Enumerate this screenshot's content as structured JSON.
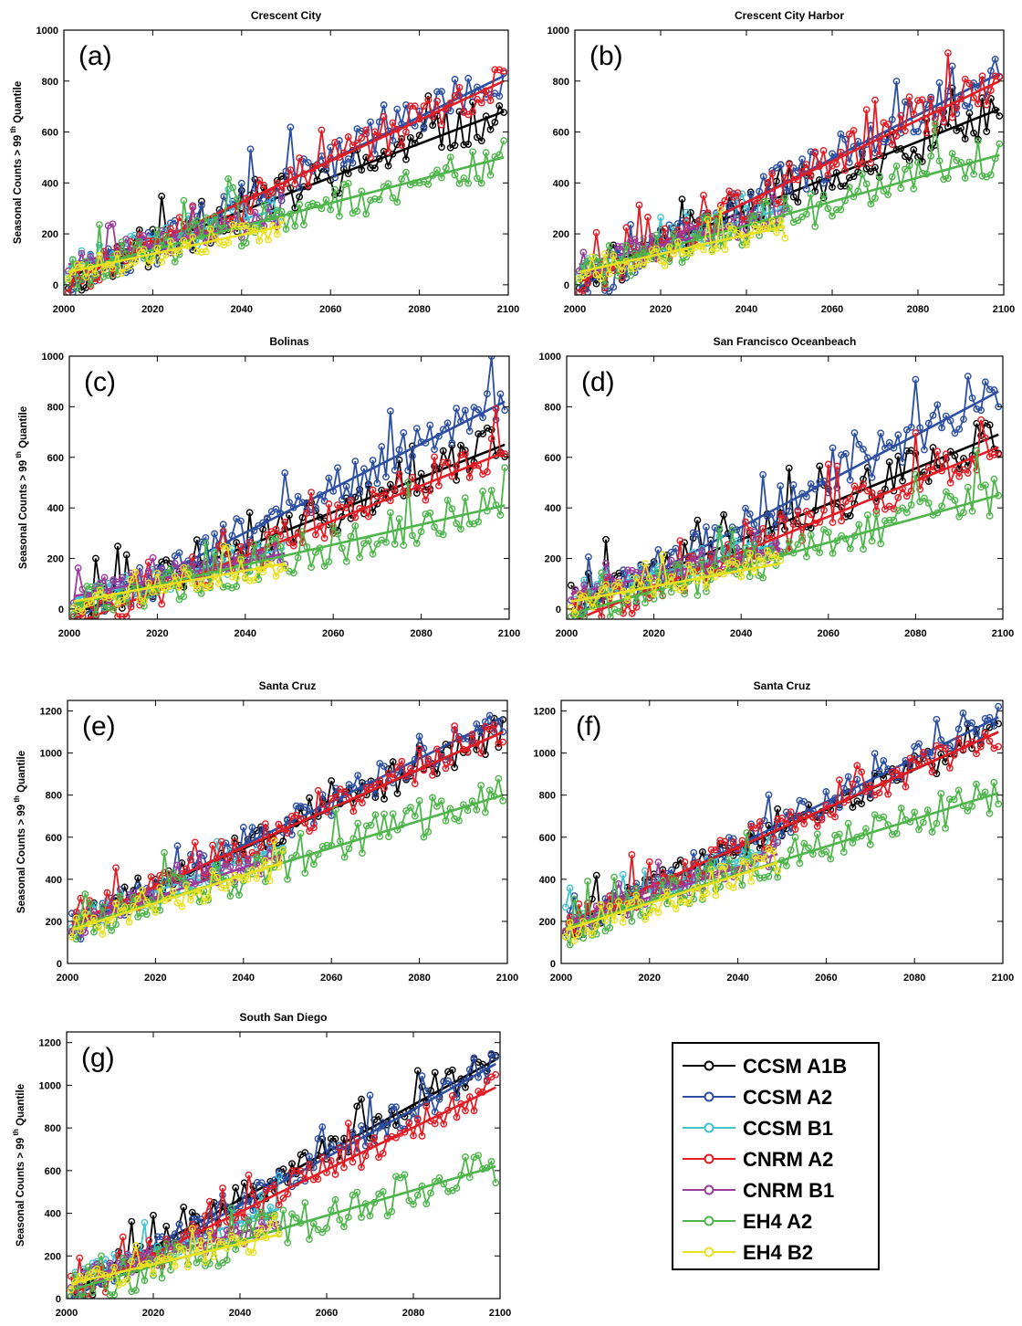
{
  "chart_data": [
    {
      "type": "line",
      "panel": "(a)",
      "title": "Crescent City",
      "ylabel": "Seasonal  Counts > 99 th Quantile",
      "xlim": [
        2000,
        2100
      ],
      "ylim": [
        -40,
        1000
      ],
      "xticks": [
        2000,
        2020,
        2040,
        2060,
        2080,
        2100
      ],
      "yticks": [
        0,
        200,
        400,
        600,
        800,
        1000
      ],
      "series": [
        {
          "name": "CCSM  A1B",
          "x_range": [
            2001,
            2099
          ],
          "trend": [
            30,
            680
          ],
          "noise": 85,
          "seed": 11
        },
        {
          "name": "CCSM  A2",
          "x_range": [
            2001,
            2099
          ],
          "trend": [
            -10,
            820
          ],
          "noise": 80,
          "seed": 12
        },
        {
          "name": "CCSM  B1",
          "x_range": [
            2001,
            2049
          ],
          "trend": [
            70,
            300
          ],
          "noise": 55,
          "seed": 13
        },
        {
          "name": "CNRM  A2",
          "x_range": [
            2001,
            2099
          ],
          "trend": [
            10,
            800
          ],
          "noise": 80,
          "seed": 14
        },
        {
          "name": "CNRM  B1",
          "x_range": [
            2001,
            2049
          ],
          "trend": [
            80,
            270
          ],
          "noise": 50,
          "seed": 15
        },
        {
          "name": "EH4  A2",
          "x_range": [
            2001,
            2099
          ],
          "trend": [
            50,
            500
          ],
          "noise": 80,
          "seed": 16
        },
        {
          "name": "EH4  B2",
          "x_range": [
            2001,
            2049
          ],
          "trend": [
            50,
            230
          ],
          "noise": 50,
          "seed": 17
        }
      ]
    },
    {
      "type": "line",
      "panel": "(b)",
      "title": "Crescent  City  Harbor",
      "ylabel": "",
      "xlim": [
        2000,
        2100
      ],
      "ylim": [
        -40,
        1000
      ],
      "xticks": [
        2000,
        2020,
        2040,
        2060,
        2080,
        2100
      ],
      "yticks": [
        0,
        200,
        400,
        600,
        800,
        1000
      ],
      "series": [
        {
          "name": "CCSM  A1B",
          "x_range": [
            2001,
            2099
          ],
          "trend": [
            30,
            690
          ],
          "noise": 85,
          "seed": 21
        },
        {
          "name": "CCSM  A2",
          "x_range": [
            2001,
            2099
          ],
          "trend": [
            -10,
            830
          ],
          "noise": 80,
          "seed": 22
        },
        {
          "name": "CCSM  B1",
          "x_range": [
            2001,
            2049
          ],
          "trend": [
            70,
            300
          ],
          "noise": 55,
          "seed": 23
        },
        {
          "name": "CNRM  A2",
          "x_range": [
            2001,
            2099
          ],
          "trend": [
            10,
            800
          ],
          "noise": 80,
          "seed": 24
        },
        {
          "name": "CNRM  B1",
          "x_range": [
            2001,
            2049
          ],
          "trend": [
            80,
            270
          ],
          "noise": 50,
          "seed": 25
        },
        {
          "name": "EH4  A2",
          "x_range": [
            2001,
            2099
          ],
          "trend": [
            50,
            510
          ],
          "noise": 80,
          "seed": 26
        },
        {
          "name": "EH4  B2",
          "x_range": [
            2001,
            2049
          ],
          "trend": [
            50,
            230
          ],
          "noise": 50,
          "seed": 27
        }
      ]
    },
    {
      "type": "line",
      "panel": "(c)",
      "title": "Bolinas",
      "ylabel": "Seasonal  Counts > 99 th Quantile",
      "xlim": [
        2000,
        2100
      ],
      "ylim": [
        -40,
        1000
      ],
      "xticks": [
        2000,
        2020,
        2040,
        2060,
        2080,
        2100
      ],
      "yticks": [
        0,
        200,
        400,
        600,
        800,
        1000
      ],
      "series": [
        {
          "name": "CCSM  A1B",
          "x_range": [
            2001,
            2099
          ],
          "trend": [
            -20,
            650
          ],
          "noise": 80,
          "seed": 31
        },
        {
          "name": "CCSM  A2",
          "x_range": [
            2001,
            2099
          ],
          "trend": [
            -40,
            820
          ],
          "noise": 80,
          "seed": 32
        },
        {
          "name": "CCSM  B1",
          "x_range": [
            2001,
            2049
          ],
          "trend": [
            40,
            240
          ],
          "noise": 55,
          "seed": 33
        },
        {
          "name": "CNRM  A2",
          "x_range": [
            2001,
            2099
          ],
          "trend": [
            -60,
            620
          ],
          "noise": 80,
          "seed": 34
        },
        {
          "name": "CNRM  B1",
          "x_range": [
            2001,
            2049
          ],
          "trend": [
            50,
            220
          ],
          "noise": 50,
          "seed": 35
        },
        {
          "name": "EH4  A2",
          "x_range": [
            2001,
            2099
          ],
          "trend": [
            20,
            410
          ],
          "noise": 80,
          "seed": 36
        },
        {
          "name": "EH4  B2",
          "x_range": [
            2001,
            2049
          ],
          "trend": [
            30,
            180
          ],
          "noise": 50,
          "seed": 37
        }
      ]
    },
    {
      "type": "line",
      "panel": "(d)",
      "title": "San Francisco  Oceanbeach",
      "ylabel": "",
      "xlim": [
        2000,
        2100
      ],
      "ylim": [
        -40,
        1000
      ],
      "xticks": [
        2000,
        2020,
        2040,
        2060,
        2080,
        2100
      ],
      "yticks": [
        0,
        200,
        400,
        600,
        800,
        1000
      ],
      "series": [
        {
          "name": "CCSM  A1B",
          "x_range": [
            2001,
            2099
          ],
          "trend": [
            0,
            690
          ],
          "noise": 85,
          "seed": 41
        },
        {
          "name": "CCSM  A2",
          "x_range": [
            2001,
            2099
          ],
          "trend": [
            -30,
            860
          ],
          "noise": 85,
          "seed": 42
        },
        {
          "name": "CCSM  B1",
          "x_range": [
            2001,
            2049
          ],
          "trend": [
            60,
            260
          ],
          "noise": 55,
          "seed": 43
        },
        {
          "name": "CNRM  A2",
          "x_range": [
            2001,
            2099
          ],
          "trend": [
            -50,
            640
          ],
          "noise": 80,
          "seed": 44
        },
        {
          "name": "CNRM  B1",
          "x_range": [
            2001,
            2049
          ],
          "trend": [
            60,
            240
          ],
          "noise": 50,
          "seed": 45
        },
        {
          "name": "EH4  A2",
          "x_range": [
            2001,
            2099
          ],
          "trend": [
            -20,
            450
          ],
          "noise": 80,
          "seed": 46
        },
        {
          "name": "EH4  B2",
          "x_range": [
            2001,
            2049
          ],
          "trend": [
            30,
            180
          ],
          "noise": 50,
          "seed": 47
        }
      ]
    },
    {
      "type": "line",
      "panel": "(e)",
      "title": "Santa  Cruz",
      "ylabel": "Seasonal  Counts > 99 th Quantile",
      "xlim": [
        2000,
        2100
      ],
      "ylim": [
        0,
        1250
      ],
      "xticks": [
        2000,
        2020,
        2040,
        2060,
        2080,
        2100
      ],
      "yticks": [
        0,
        200,
        400,
        600,
        800,
        1000,
        1200
      ],
      "series": [
        {
          "name": "CCSM  A1B",
          "x_range": [
            2001,
            2099
          ],
          "trend": [
            180,
            1100
          ],
          "noise": 70,
          "seed": 51
        },
        {
          "name": "CCSM  A2",
          "x_range": [
            2001,
            2099
          ],
          "trend": [
            160,
            1170
          ],
          "noise": 70,
          "seed": 52
        },
        {
          "name": "CCSM  B1",
          "x_range": [
            2001,
            2049
          ],
          "trend": [
            200,
            560
          ],
          "noise": 60,
          "seed": 53
        },
        {
          "name": "CNRM  A2",
          "x_range": [
            2001,
            2099
          ],
          "trend": [
            190,
            1100
          ],
          "noise": 75,
          "seed": 54
        },
        {
          "name": "CNRM  B1",
          "x_range": [
            2001,
            2049
          ],
          "trend": [
            180,
            520
          ],
          "noise": 60,
          "seed": 55
        },
        {
          "name": "EH4  A2",
          "x_range": [
            2001,
            2099
          ],
          "trend": [
            170,
            800
          ],
          "noise": 90,
          "seed": 56
        },
        {
          "name": "EH4  B2",
          "x_range": [
            2001,
            2049
          ],
          "trend": [
            160,
            480
          ],
          "noise": 70,
          "seed": 57
        }
      ]
    },
    {
      "type": "line",
      "panel": "(f)",
      "title": "Santa  Cruz",
      "ylabel": "",
      "xlim": [
        2000,
        2100
      ],
      "ylim": [
        0,
        1250
      ],
      "xticks": [
        2000,
        2020,
        2040,
        2060,
        2080,
        2100
      ],
      "yticks": [
        0,
        200,
        400,
        600,
        800,
        1000,
        1200
      ],
      "series": [
        {
          "name": "CCSM  A1B",
          "x_range": [
            2001,
            2099
          ],
          "trend": [
            180,
            1100
          ],
          "noise": 70,
          "seed": 61
        },
        {
          "name": "CCSM  A2",
          "x_range": [
            2001,
            2099
          ],
          "trend": [
            160,
            1170
          ],
          "noise": 70,
          "seed": 62
        },
        {
          "name": "CCSM  B1",
          "x_range": [
            2001,
            2049
          ],
          "trend": [
            200,
            560
          ],
          "noise": 60,
          "seed": 63
        },
        {
          "name": "CNRM  A2",
          "x_range": [
            2001,
            2099
          ],
          "trend": [
            190,
            1100
          ],
          "noise": 75,
          "seed": 64
        },
        {
          "name": "CNRM  B1",
          "x_range": [
            2001,
            2049
          ],
          "trend": [
            180,
            520
          ],
          "noise": 60,
          "seed": 65
        },
        {
          "name": "EH4  A2",
          "x_range": [
            2001,
            2099
          ],
          "trend": [
            170,
            810
          ],
          "noise": 90,
          "seed": 66
        },
        {
          "name": "EH4  B2",
          "x_range": [
            2001,
            2049
          ],
          "trend": [
            160,
            480
          ],
          "noise": 70,
          "seed": 67
        }
      ]
    },
    {
      "type": "line",
      "panel": "(g)",
      "title": "South  San  Diego",
      "ylabel": "Seasonal  Counts > 99 th Quantile",
      "xlim": [
        2000,
        2100
      ],
      "ylim": [
        0,
        1250
      ],
      "xticks": [
        2000,
        2020,
        2040,
        2060,
        2080,
        2100
      ],
      "yticks": [
        0,
        200,
        400,
        600,
        800,
        1000,
        1200
      ],
      "series": [
        {
          "name": "CCSM  A1B",
          "x_range": [
            2001,
            2099
          ],
          "trend": [
            30,
            1120
          ],
          "noise": 70,
          "seed": 71
        },
        {
          "name": "CCSM  A2",
          "x_range": [
            2001,
            2099
          ],
          "trend": [
            0,
            1100
          ],
          "noise": 70,
          "seed": 72
        },
        {
          "name": "CCSM  B1",
          "x_range": [
            2001,
            2049
          ],
          "trend": [
            80,
            420
          ],
          "noise": 60,
          "seed": 73
        },
        {
          "name": "CNRM  A2",
          "x_range": [
            2001,
            2099
          ],
          "trend": [
            20,
            990
          ],
          "noise": 75,
          "seed": 74
        },
        {
          "name": "CNRM  B1",
          "x_range": [
            2001,
            2049
          ],
          "trend": [
            80,
            360
          ],
          "noise": 60,
          "seed": 75
        },
        {
          "name": "EH4  A2",
          "x_range": [
            2001,
            2099
          ],
          "trend": [
            40,
            620
          ],
          "noise": 90,
          "seed": 76
        },
        {
          "name": "EH4  B2",
          "x_range": [
            2001,
            2049
          ],
          "trend": [
            70,
            300
          ],
          "noise": 60,
          "seed": 77
        }
      ]
    }
  ],
  "legend": {
    "placement": "bottom-right",
    "entries": [
      {
        "label": "CCSM  A1B",
        "color": "#000000"
      },
      {
        "label": "CCSM  A2",
        "color": "#2b4ea2"
      },
      {
        "label": "CCSM  B1",
        "color": "#43c3d0"
      },
      {
        "label": "CNRM  A2",
        "color": "#e31b23"
      },
      {
        "label": "CNRM  B1",
        "color": "#9b3b9b"
      },
      {
        "label": "EH4  A2",
        "color": "#4db54a"
      },
      {
        "label": "EH4  B2",
        "color": "#e8e020"
      }
    ]
  }
}
